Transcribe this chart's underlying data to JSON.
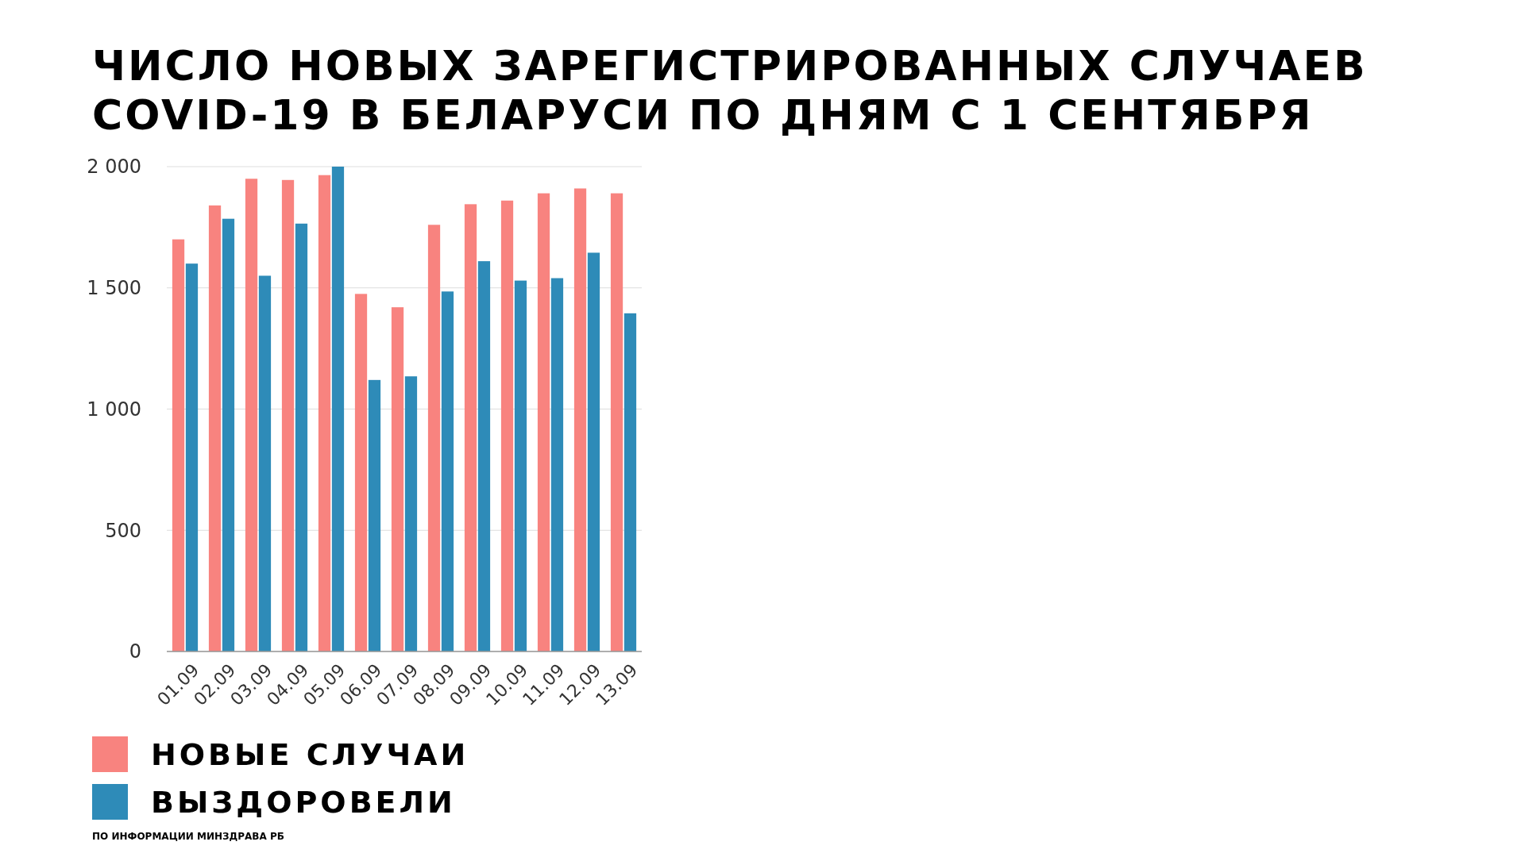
{
  "chart_data": {
    "type": "bar",
    "title": "ЧИСЛО НОВЫХ ЗАРЕГИСТРИРОВАННЫХ СЛУЧАЕВ COVID-19 В БЕЛАРУСИ ПО ДНЯМ С 1 СЕНТЯБРЯ",
    "categories": [
      "01.09",
      "02.09",
      "03.09",
      "04.09",
      "05.09",
      "06.09",
      "07.09",
      "08.09",
      "09.09",
      "10.09",
      "11.09",
      "12.09",
      "13.09"
    ],
    "series": [
      {
        "name": "НОВЫЕ СЛУЧАИ",
        "color": "#f8837f",
        "values": [
          1700,
          1840,
          1950,
          1945,
          1965,
          1475,
          1420,
          1760,
          1845,
          1860,
          1890,
          1910,
          1890
        ]
      },
      {
        "name": "ВЫЗДОРОВЕЛИ",
        "color": "#2e8bb8",
        "values": [
          1600,
          1785,
          1550,
          1765,
          2000,
          1120,
          1135,
          1485,
          1610,
          1530,
          1540,
          1645,
          1395
        ]
      }
    ],
    "ylim": [
      0,
      2000
    ],
    "yticks": [
      0,
      {
        "value": 500,
        "label": "500"
      },
      {
        "value": 1000,
        "label": "1 000"
      },
      {
        "value": 1500,
        "label": "1 500"
      },
      {
        "value": 2000,
        "label": "2 000"
      }
    ],
    "grid": "y",
    "legend": "bottom",
    "annotations": [
      "ПО ИНФОРМАЦИИ МИНЗДРАВА РБ"
    ]
  }
}
